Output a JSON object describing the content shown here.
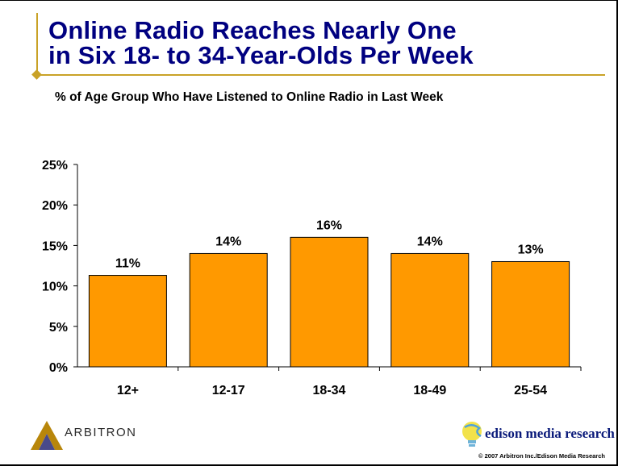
{
  "slide": {
    "title_line1": "Online Radio Reaches Nearly One",
    "title_line2": "in Six 18- to 34-Year-Olds Per Week",
    "accent_color": "#c9a227",
    "title_color": "#000080"
  },
  "chart_data": {
    "type": "bar",
    "title": "% of Age Group Who Have Listened to Online Radio in Last Week",
    "categories": [
      "12+",
      "12-17",
      "18-34",
      "18-49",
      "25-54"
    ],
    "values": [
      11.3,
      14,
      16,
      14,
      13
    ],
    "data_labels": [
      "11%",
      "14%",
      "16%",
      "14%",
      "13%"
    ],
    "y_ticks": [
      0,
      5,
      10,
      15,
      20,
      25
    ],
    "y_tick_labels": [
      "0%",
      "5%",
      "10%",
      "15%",
      "20%",
      "25%"
    ],
    "ylim": [
      0,
      25
    ],
    "bar_color": "#ff9900",
    "grid": false,
    "legend": "none"
  },
  "logos": {
    "arbitron": "ARBITRON",
    "edison": "edison media research"
  },
  "footer": {
    "copyright": "© 2007 Arbitron Inc./Edison Media Research"
  }
}
